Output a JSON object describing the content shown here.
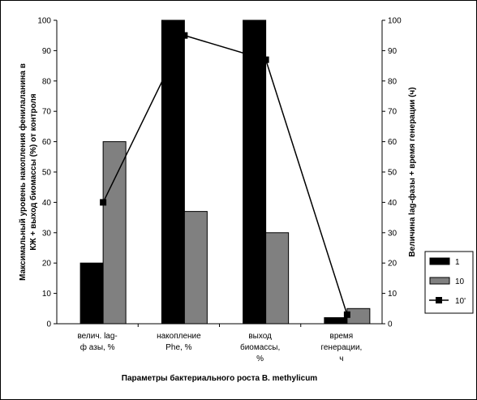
{
  "chart_data": {
    "type": "bar",
    "categories": [
      "велич. lag-\nф азы, %",
      "накопление\nPhe, %",
      "выход\nбиомассы,\n%",
      "время\nгенерации,\nч"
    ],
    "series": [
      {
        "name": "1",
        "color": "#000000",
        "values": [
          20,
          100,
          100,
          2
        ]
      },
      {
        "name": "10",
        "color": "#808080",
        "values": [
          60,
          37,
          30,
          5
        ]
      },
      {
        "name": "10'",
        "color": "#000000",
        "type": "line",
        "axis": "y2",
        "values": [
          40,
          95,
          87,
          3
        ]
      }
    ],
    "ylim": [
      0,
      100
    ],
    "yticks": [
      0,
      10,
      20,
      30,
      40,
      50,
      60,
      70,
      80,
      90,
      100
    ],
    "y2lim": [
      0,
      100
    ],
    "y2ticks": [
      0,
      10,
      20,
      30,
      40,
      50,
      60,
      70,
      80,
      90,
      100
    ],
    "y_label": "Максимальный уровень накопления фенилаланина в\nКЖ + выход биомассы (%) от контроля",
    "y2_label": "Величина lag-фазы + время генерации (ч)",
    "x_label": "Параметры бактериального роста B. methylicum",
    "legend": "right"
  }
}
